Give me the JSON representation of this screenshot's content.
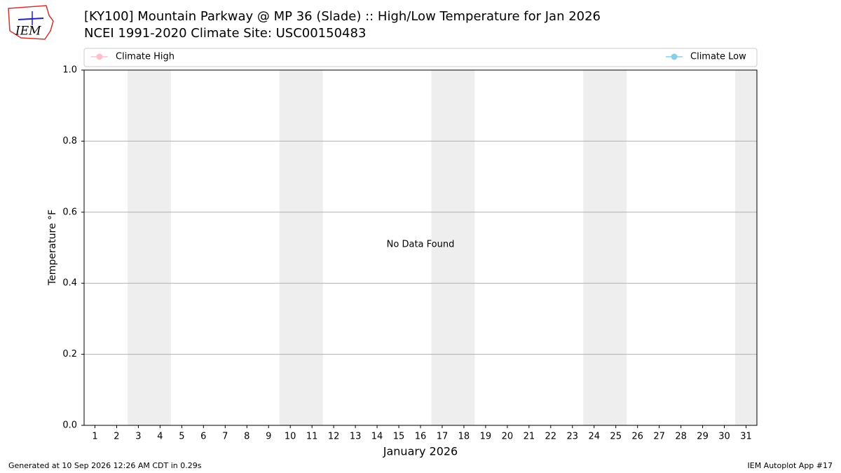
{
  "chart_data": {
    "type": "line",
    "title": "[KY100] Mountain Parkway @ MP 36 (Slade) :: High/Low Temperature for Jan 2026",
    "subtitle": "NCEI 1991-2020 Climate Site: USC00150483",
    "xlabel": "January 2026",
    "ylabel": "Temperature °F",
    "annotation": "No Data Found",
    "x": [
      1,
      2,
      3,
      4,
      5,
      6,
      7,
      8,
      9,
      10,
      11,
      12,
      13,
      14,
      15,
      16,
      17,
      18,
      19,
      20,
      21,
      22,
      23,
      24,
      25,
      26,
      27,
      28,
      29,
      30,
      31
    ],
    "series": [
      {
        "name": "Climate High",
        "color": "#ffc0cb",
        "values": [
          null,
          null,
          null,
          null,
          null,
          null,
          null,
          null,
          null,
          null,
          null,
          null,
          null,
          null,
          null,
          null,
          null,
          null,
          null,
          null,
          null,
          null,
          null,
          null,
          null,
          null,
          null,
          null,
          null,
          null,
          null
        ]
      },
      {
        "name": "Climate Low",
        "color": "#87ceeb",
        "values": [
          null,
          null,
          null,
          null,
          null,
          null,
          null,
          null,
          null,
          null,
          null,
          null,
          null,
          null,
          null,
          null,
          null,
          null,
          null,
          null,
          null,
          null,
          null,
          null,
          null,
          null,
          null,
          null,
          null,
          null,
          null
        ]
      }
    ],
    "shaded_ranges": [
      [
        2.5,
        4.5
      ],
      [
        9.5,
        11.5
      ],
      [
        16.5,
        18.5
      ],
      [
        23.5,
        25.5
      ],
      [
        30.5,
        31.5
      ]
    ],
    "shade_color": "#eeeeee",
    "xlim": [
      0.5,
      31.5
    ],
    "xticks": [
      1,
      2,
      3,
      4,
      5,
      6,
      7,
      8,
      9,
      10,
      11,
      12,
      13,
      14,
      15,
      16,
      17,
      18,
      19,
      20,
      21,
      22,
      23,
      24,
      25,
      26,
      27,
      28,
      29,
      30,
      31
    ],
    "ylim": [
      0,
      1
    ],
    "yticks": [
      {
        "value": 0,
        "label": "0.0"
      },
      {
        "value": 0.2,
        "label": "0.2"
      },
      {
        "value": 0.4,
        "label": "0.4"
      },
      {
        "value": 0.6,
        "label": "0.6"
      },
      {
        "value": 0.8,
        "label": "0.8"
      },
      {
        "value": 1,
        "label": "1.0"
      }
    ],
    "grid": true
  },
  "footer": {
    "generated": "Generated at 10 Sep 2026 12:26 AM CDT in 0.29s",
    "app": "IEM Autoplot App #17"
  }
}
